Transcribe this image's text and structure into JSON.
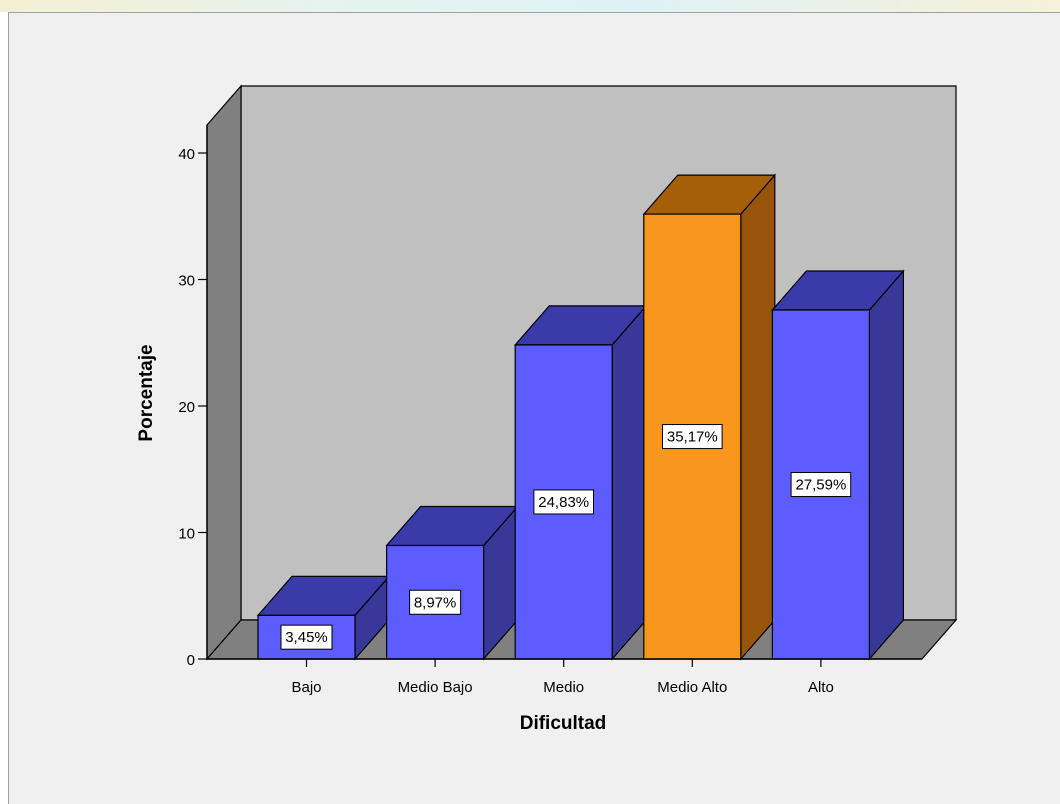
{
  "chart_data": {
    "type": "bar",
    "categories": [
      "Bajo",
      "Medio Bajo",
      "Medio",
      "Medio Alto",
      "Alto"
    ],
    "values": [
      3.45,
      8.97,
      24.83,
      35.17,
      27.59
    ],
    "data_labels": [
      "3,45%",
      "8,97%",
      "24,83%",
      "35,17%",
      "27,59%"
    ],
    "title": "",
    "xlabel": "Dificultad",
    "ylabel": "Porcentaje",
    "ylim": [
      0,
      40
    ],
    "yticks": [
      0,
      10,
      20,
      30,
      40
    ],
    "ytick_labels": [
      "0",
      "10",
      "20",
      "30",
      "40"
    ],
    "highlight_index": 3,
    "style": "3d",
    "grid": false,
    "legend": "none",
    "colors": {
      "bar_front": "#5c5cff",
      "bar_top": "#3a3aa8",
      "bar_side": "#383898",
      "highlight_front": "#f7981c",
      "highlight_top": "#a65f09",
      "highlight_side": "#97540a",
      "back_wall": "#c0c0c0",
      "left_wall": "#808080",
      "floor": "#808080",
      "label_box": "#ffffff"
    }
  }
}
